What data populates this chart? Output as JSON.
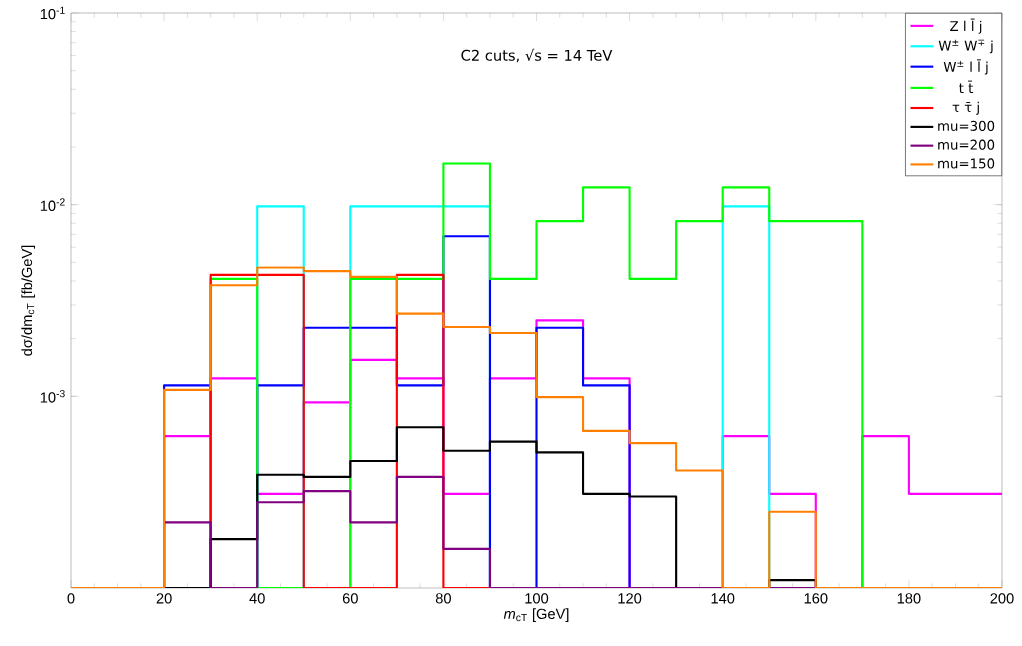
{
  "chart_data": {
    "type": "histogram",
    "annotations": [
      "C2 cuts, √s = 14 TeV"
    ],
    "xlabel": "*m*$_{cT}$ [GeV]",
    "ylabel": "dσ/dm$_{cT}$ [fb/GeV]",
    "bins": [
      0,
      10,
      20,
      30,
      40,
      50,
      60,
      70,
      80,
      90,
      100,
      110,
      120,
      130,
      140,
      150,
      160,
      170,
      180,
      190,
      200
    ],
    "series": [
      {
        "name": "Z l l̄ j",
        "color": "#ff00ff",
        "values": [
          null,
          null,
          0.00062,
          0.00124,
          0.00031,
          0.00093,
          0.00155,
          0.00124,
          0.00031,
          0.00124,
          0.00249,
          0.00124,
          null,
          null,
          0.00062,
          0.00031,
          null,
          0.00062,
          0.00031,
          0.00031
        ]
      },
      {
        "name": "W$^{±}$ W$^{∓}$ j",
        "color": "#00ffff",
        "values": [
          null,
          null,
          null,
          null,
          0.0098,
          null,
          0.0098,
          0.0098,
          0.0098,
          null,
          null,
          null,
          null,
          null,
          0.0098,
          null,
          null,
          null,
          null,
          null
        ]
      },
      {
        "name": "W$^{±}$ l l̄ j",
        "color": "#0000ff",
        "values": [
          null,
          null,
          0.00114,
          null,
          0.00114,
          0.00228,
          0.00228,
          0.00114,
          0.00684,
          null,
          0.00228,
          0.00114,
          null,
          null,
          null,
          null,
          null,
          null,
          null,
          null
        ]
      },
      {
        "name": "t t̄",
        "color": "#00ff00",
        "values": [
          null,
          null,
          null,
          0.0041,
          null,
          null,
          0.0041,
          0.0041,
          0.0164,
          0.0041,
          0.0082,
          0.0123,
          0.0041,
          0.0082,
          0.0123,
          0.0082,
          0.0082,
          null,
          null,
          null
        ]
      },
      {
        "name": "τ τ̄ j",
        "color": "#ff0000",
        "values": [
          null,
          null,
          null,
          0.0043,
          0.0043,
          null,
          null,
          0.0043,
          null,
          null,
          null,
          null,
          null,
          null,
          null,
          null,
          null,
          null,
          null,
          null
        ]
      },
      {
        "name": "mu=300",
        "color": "#000000",
        "values": [
          null,
          null,
          null,
          0.00018,
          0.00039,
          0.00038,
          0.00046,
          0.00069,
          0.00052,
          0.00058,
          0.00051,
          0.00031,
          0.0003,
          null,
          null,
          0.00011,
          null,
          null,
          null,
          null
        ]
      },
      {
        "name": "mu=200",
        "color": "#800080",
        "values": [
          null,
          null,
          0.00022,
          null,
          0.00028,
          0.00032,
          0.00022,
          0.00038,
          0.00016,
          null,
          null,
          null,
          null,
          null,
          null,
          null,
          null,
          null,
          null,
          null
        ]
      },
      {
        "name": "mu=150",
        "color": "#ff8000",
        "values": [
          null,
          null,
          0.00108,
          0.0038,
          0.0047,
          0.0045,
          0.0042,
          0.0027,
          0.0023,
          0.00214,
          0.00099,
          0.00066,
          0.00057,
          0.00041,
          null,
          0.00025,
          null,
          null,
          null,
          null
        ]
      }
    ],
    "xlim": [
      0,
      200
    ],
    "ylim": [
      0.0001,
      0.1
    ],
    "xticks": [
      0,
      20,
      40,
      60,
      80,
      100,
      120,
      140,
      160,
      180,
      200
    ],
    "yticks": [
      {
        "value": 0.001,
        "label": "10$^{-3}$"
      },
      {
        "value": 0.01,
        "label": "10$^{-2}$"
      },
      {
        "value": 0.1,
        "label": "10$^{-1}$"
      }
    ],
    "log": "y",
    "grid": false,
    "legend": "top right"
  }
}
